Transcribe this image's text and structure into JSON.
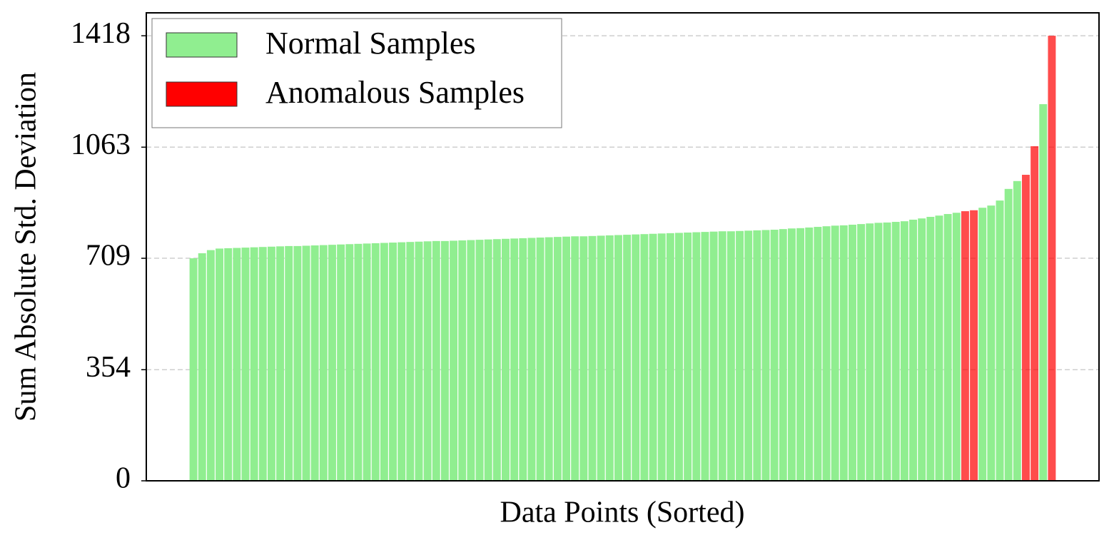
{
  "chart_data": {
    "type": "bar",
    "x_label": "Data Points (Sorted)",
    "y_label": "Sum Absolute Std. Deviation",
    "categories": [
      null,
      null,
      null,
      null,
      null,
      null,
      null,
      null,
      null,
      null,
      null,
      null,
      null,
      null,
      null,
      null,
      null,
      null,
      null,
      null,
      null,
      null,
      null,
      null,
      null,
      null,
      null,
      null,
      null,
      null,
      null,
      null,
      null,
      null,
      null,
      null,
      null,
      null,
      null,
      null,
      null,
      null,
      null,
      null,
      null,
      null,
      null,
      null,
      null,
      null,
      null,
      null,
      null,
      null,
      null,
      null,
      null,
      null,
      null,
      null,
      null,
      null,
      null,
      null,
      null,
      null,
      null,
      null,
      null,
      null,
      null,
      null,
      null,
      null,
      null,
      null,
      null,
      null,
      null,
      null,
      null,
      null,
      null,
      null,
      null,
      null,
      null,
      null,
      null,
      null,
      null,
      null,
      null,
      null,
      null,
      null,
      null,
      null,
      null,
      null
    ],
    "series": [
      {
        "name": "Normal Samples",
        "color": "#90ee90",
        "values": [
          709,
          725,
          735,
          740,
          741,
          742,
          743,
          744,
          745,
          746,
          747,
          748,
          748,
          749,
          750,
          751,
          752,
          753,
          754,
          755,
          756,
          757,
          758,
          759,
          760,
          761,
          762,
          763,
          764,
          764,
          765,
          766,
          767,
          768,
          769,
          770,
          771,
          772,
          773,
          774,
          775,
          776,
          777,
          778,
          779,
          779,
          780,
          781,
          782,
          783,
          784,
          785,
          786,
          787,
          788,
          789,
          790,
          791,
          792,
          793,
          794,
          795,
          795,
          796,
          797,
          798,
          799,
          800,
          802,
          804,
          805,
          807,
          809,
          811,
          813,
          814,
          816,
          818,
          820,
          822,
          823,
          825,
          827,
          832,
          836,
          841,
          845,
          850,
          854,
          null,
          null,
          870,
          877,
          893,
          930,
          955,
          null,
          null,
          1200,
          null
        ]
      },
      {
        "name": "Anomalous Samples",
        "color": "#ff0000",
        "values": [
          null,
          null,
          null,
          null,
          null,
          null,
          null,
          null,
          null,
          null,
          null,
          null,
          null,
          null,
          null,
          null,
          null,
          null,
          null,
          null,
          null,
          null,
          null,
          null,
          null,
          null,
          null,
          null,
          null,
          null,
          null,
          null,
          null,
          null,
          null,
          null,
          null,
          null,
          null,
          null,
          null,
          null,
          null,
          null,
          null,
          null,
          null,
          null,
          null,
          null,
          null,
          null,
          null,
          null,
          null,
          null,
          null,
          null,
          null,
          null,
          null,
          null,
          null,
          null,
          null,
          null,
          null,
          null,
          null,
          null,
          null,
          null,
          null,
          null,
          null,
          null,
          null,
          null,
          null,
          null,
          null,
          null,
          null,
          null,
          null,
          null,
          null,
          null,
          null,
          859,
          862,
          null,
          null,
          null,
          null,
          null,
          975,
          1066,
          null,
          1418
        ]
      }
    ],
    "ylim": [
      0,
      1491
    ],
    "yticks": [
      0,
      354,
      709,
      1063,
      1418
    ],
    "grid": true,
    "legend": "upper left"
  }
}
